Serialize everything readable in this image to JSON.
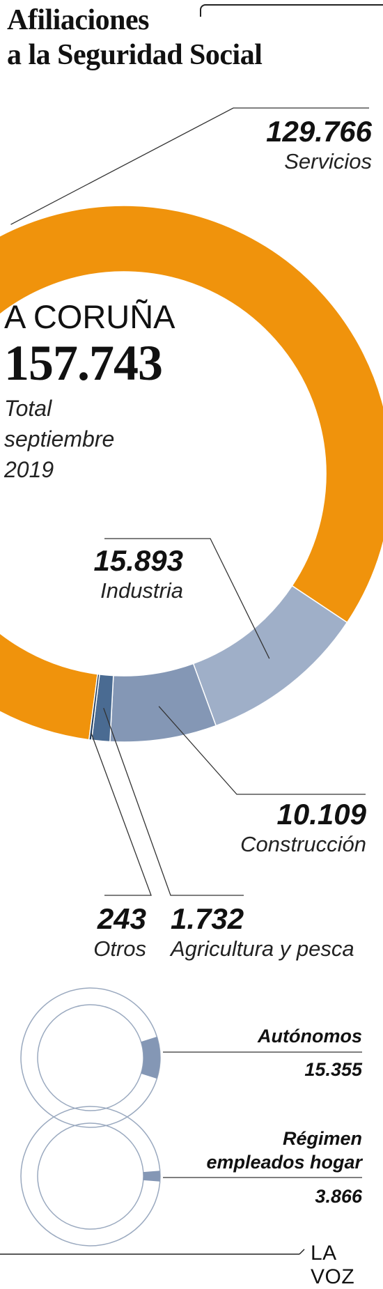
{
  "header": {
    "title_line1": "Afiliaciones",
    "title_line2": "a la Seguridad Social"
  },
  "center": {
    "city": "A CORUÑA",
    "total": "157.743",
    "caption_line1": "Total",
    "caption_line2": "septiembre",
    "caption_line3": "2019"
  },
  "footer": {
    "brand": "LA VOZ"
  },
  "colors": {
    "servicios": "#f0930c",
    "industria": "#9fafc8",
    "construccion": "#8497b5",
    "agricultura": "#4a6b92",
    "otros": "#1d3a5c",
    "ring_outline": "#9aa9bf",
    "leader": "#333333"
  },
  "chart_data": [
    {
      "type": "pie",
      "title": "",
      "labels": [
        "Servicios",
        "Industria",
        "Construcción",
        "Agricultura y pesca",
        "Otros"
      ],
      "values": [
        129766,
        15893,
        10109,
        1732,
        243
      ],
      "value_labels": [
        "129.766",
        "15.893",
        "10.109",
        "1.732",
        "243"
      ],
      "total": 157743,
      "donut": true
    },
    {
      "type": "pie",
      "title": "",
      "labels": [
        "Autónomos"
      ],
      "values": [
        15355
      ],
      "value_labels": [
        "15.355"
      ],
      "donut": true
    },
    {
      "type": "pie",
      "title": "",
      "labels": [
        "Régimen empleados hogar"
      ],
      "label_lines": [
        "Régimen",
        "empleados hogar"
      ],
      "values": [
        3866
      ],
      "value_labels": [
        "3.866"
      ],
      "donut": true
    }
  ]
}
